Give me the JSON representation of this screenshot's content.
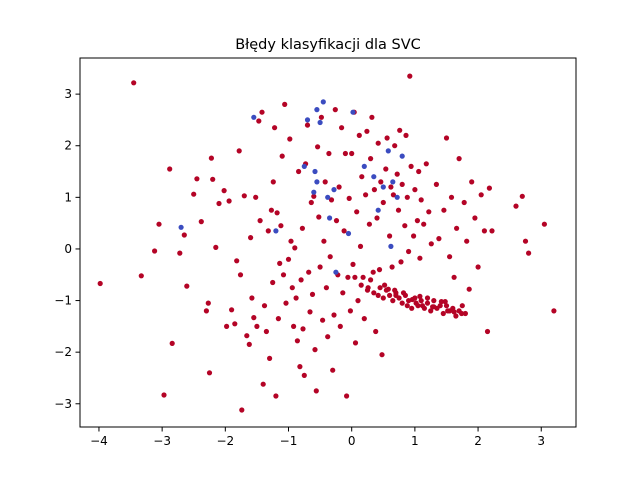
{
  "chart_data": {
    "type": "scatter",
    "title": "Błędy klasyfikacji dla SVC",
    "xlabel": "",
    "ylabel": "",
    "xlim": [
      -4.3,
      3.55
    ],
    "ylim": [
      -3.45,
      3.7
    ],
    "x_ticks": [
      -4,
      -3,
      -2,
      -1,
      0,
      1,
      2,
      3
    ],
    "y_ticks": [
      -3,
      -2,
      -1,
      0,
      1,
      2,
      3
    ],
    "grid": false,
    "legend": "none",
    "colors": {
      "correct": "#b40426",
      "misclassified": "#3b4cc0"
    },
    "series": [
      {
        "color_key": "correct",
        "points": [
          [
            -3.45,
            3.22
          ],
          [
            -3.98,
            -0.67
          ],
          [
            -3.33,
            -0.52
          ],
          [
            -3.12,
            -0.04
          ],
          [
            -3.05,
            0.48
          ],
          [
            -2.97,
            -2.83
          ],
          [
            -2.88,
            1.55
          ],
          [
            -2.84,
            -1.83
          ],
          [
            -2.72,
            -0.08
          ],
          [
            -2.65,
            0.27
          ],
          [
            -2.61,
            -0.72
          ],
          [
            -2.5,
            1.06
          ],
          [
            -2.45,
            1.36
          ],
          [
            -2.38,
            0.53
          ],
          [
            -2.3,
            -1.2
          ],
          [
            -2.27,
            -1.05
          ],
          [
            -2.25,
            -2.4
          ],
          [
            -2.22,
            1.76
          ],
          [
            -2.2,
            1.35
          ],
          [
            -2.15,
            0.03
          ],
          [
            -2.1,
            0.88
          ],
          [
            -2.02,
            1.13
          ],
          [
            -1.98,
            -1.5
          ],
          [
            -1.94,
            0.93
          ],
          [
            -1.9,
            -1.18
          ],
          [
            -1.85,
            -1.45
          ],
          [
            -1.82,
            -0.23
          ],
          [
            -1.78,
            1.9
          ],
          [
            -1.76,
            -0.5
          ],
          [
            -1.74,
            -3.12
          ],
          [
            -1.7,
            1.03
          ],
          [
            -1.66,
            -1.68
          ],
          [
            -1.62,
            -1.85
          ],
          [
            -1.6,
            0.22
          ],
          [
            -1.58,
            -0.95
          ],
          [
            -1.55,
            -1.33
          ],
          [
            -1.52,
            1.0
          ],
          [
            -1.5,
            -1.5
          ],
          [
            -1.47,
            2.48
          ],
          [
            -1.45,
            0.55
          ],
          [
            -1.42,
            2.65
          ],
          [
            -1.4,
            -2.62
          ],
          [
            -1.38,
            -1.1
          ],
          [
            -1.35,
            -1.6
          ],
          [
            -1.32,
            0.35
          ],
          [
            -1.3,
            -2.12
          ],
          [
            -1.27,
            0.75
          ],
          [
            -1.25,
            -0.65
          ],
          [
            -1.24,
            1.3
          ],
          [
            -1.22,
            2.35
          ],
          [
            -1.2,
            -2.85
          ],
          [
            -1.18,
            0.7
          ],
          [
            -1.16,
            -1.35
          ],
          [
            -1.14,
            -0.28
          ],
          [
            -1.12,
            0.45
          ],
          [
            -1.1,
            1.8
          ],
          [
            -1.08,
            -0.5
          ],
          [
            -1.06,
            2.8
          ],
          [
            -1.04,
            -1.05
          ],
          [
            -1.0,
            -0.2
          ],
          [
            -0.98,
            2.13
          ],
          [
            -0.96,
            0.15
          ],
          [
            -0.94,
            -0.75
          ],
          [
            -0.92,
            -1.5
          ],
          [
            -0.9,
            0.02
          ],
          [
            -0.88,
            -0.95
          ],
          [
            -0.86,
            -1.78
          ],
          [
            -0.84,
            1.5
          ],
          [
            -0.82,
            -2.28
          ],
          [
            -0.8,
            -0.6
          ],
          [
            -0.78,
            0.4
          ],
          [
            -0.77,
            -1.55
          ],
          [
            -0.75,
            -2.45
          ],
          [
            -0.73,
            1.65
          ],
          [
            -0.7,
            2.4
          ],
          [
            -0.68,
            -0.45
          ],
          [
            -0.66,
            -1.22
          ],
          [
            -0.64,
            0.9
          ],
          [
            -0.62,
            -0.88
          ],
          [
            -0.6,
            1.02
          ],
          [
            -0.58,
            -1.95
          ],
          [
            -0.56,
            -2.75
          ],
          [
            -0.54,
            1.98
          ],
          [
            -0.52,
            0.62
          ],
          [
            -0.5,
            -0.35
          ],
          [
            -0.48,
            2.55
          ],
          [
            -0.46,
            -1.38
          ],
          [
            -0.44,
            0.15
          ],
          [
            -0.42,
            1.3
          ],
          [
            -0.4,
            -0.75
          ],
          [
            -0.38,
            -1.7
          ],
          [
            -0.36,
            1.85
          ],
          [
            -0.34,
            -0.15
          ],
          [
            -0.32,
            0.95
          ],
          [
            -0.3,
            -2.35
          ],
          [
            -0.28,
            -1.28
          ],
          [
            -0.26,
            2.7
          ],
          [
            -0.24,
            0.55
          ],
          [
            -0.22,
            -0.5
          ],
          [
            -0.2,
            1.2
          ],
          [
            -0.18,
            -1.5
          ],
          [
            -0.16,
            2.35
          ],
          [
            -0.14,
            -0.85
          ],
          [
            -0.12,
            0.35
          ],
          [
            -0.1,
            1.85
          ],
          [
            -0.08,
            -2.85
          ],
          [
            -0.06,
            -0.55
          ],
          [
            -0.04,
            0.98
          ],
          [
            -0.02,
            -1.2
          ],
          [
            0.0,
            1.85
          ],
          [
            0.02,
            -0.3
          ],
          [
            0.04,
            2.65
          ],
          [
            0.06,
            -1.82
          ],
          [
            0.08,
            0.72
          ],
          [
            0.1,
            -1.0
          ],
          [
            0.12,
            2.2
          ],
          [
            0.14,
            0.05
          ],
          [
            0.16,
            1.4
          ],
          [
            0.18,
            -0.55
          ],
          [
            0.2,
            -1.35
          ],
          [
            0.22,
            1.05
          ],
          [
            0.24,
            2.28
          ],
          [
            0.26,
            -0.75
          ],
          [
            0.28,
            0.48
          ],
          [
            0.3,
            1.75
          ],
          [
            0.32,
            2.55
          ],
          [
            0.34,
            -0.45
          ],
          [
            0.36,
            1.15
          ],
          [
            0.38,
            -1.6
          ],
          [
            0.4,
            0.6
          ],
          [
            0.42,
            2.05
          ],
          [
            0.44,
            -0.4
          ],
          [
            0.46,
            1.3
          ],
          [
            0.48,
            -2.05
          ],
          [
            0.5,
            0.9
          ],
          [
            0.52,
            -0.7
          ],
          [
            0.54,
            1.55
          ],
          [
            0.56,
            2.15
          ],
          [
            0.58,
            -0.78
          ],
          [
            0.6,
            0.25
          ],
          [
            0.62,
            1.2
          ],
          [
            0.64,
            -0.35
          ],
          [
            0.66,
            1.05
          ],
          [
            0.68,
            2.0
          ],
          [
            0.7,
            -0.9
          ],
          [
            0.72,
            1.45
          ],
          [
            0.74,
            0.75
          ],
          [
            0.76,
            2.3
          ],
          [
            0.78,
            -0.25
          ],
          [
            0.8,
            1.25
          ],
          [
            0.82,
            -0.85
          ],
          [
            0.84,
            0.45
          ],
          [
            0.86,
            2.2
          ],
          [
            0.88,
            1.0
          ],
          [
            0.9,
            -0.05
          ],
          [
            0.92,
            3.35
          ],
          [
            0.94,
            1.6
          ],
          [
            0.96,
            -0.98
          ],
          [
            0.98,
            0.25
          ],
          [
            1.0,
            1.15
          ],
          [
            1.02,
            -1.05
          ],
          [
            1.04,
            0.55
          ],
          [
            1.06,
            1.5
          ],
          [
            1.08,
            -0.18
          ],
          [
            1.1,
            0.95
          ],
          [
            1.12,
            -1.1
          ],
          [
            1.14,
            0.48
          ],
          [
            1.18,
            1.65
          ],
          [
            1.2,
            -0.95
          ],
          [
            1.22,
            0.72
          ],
          [
            1.26,
            0.1
          ],
          [
            1.3,
            -1.12
          ],
          [
            1.34,
            1.25
          ],
          [
            1.38,
            0.2
          ],
          [
            1.42,
            -1.02
          ],
          [
            1.46,
            0.75
          ],
          [
            1.5,
            2.15
          ],
          [
            1.52,
            -1.2
          ],
          [
            1.55,
            -0.15
          ],
          [
            1.58,
            1.0
          ],
          [
            1.62,
            -0.55
          ],
          [
            1.66,
            0.4
          ],
          [
            1.7,
            1.75
          ],
          [
            1.74,
            -1.25
          ],
          [
            1.78,
            0.9
          ],
          [
            1.82,
            0.15
          ],
          [
            1.86,
            -0.78
          ],
          [
            1.9,
            1.3
          ],
          [
            1.95,
            0.6
          ],
          [
            2.0,
            -0.35
          ],
          [
            2.05,
            1.05
          ],
          [
            2.1,
            0.35
          ],
          [
            2.15,
            -1.6
          ],
          [
            2.18,
            1.18
          ],
          [
            2.22,
            0.35
          ],
          [
            2.6,
            0.83
          ],
          [
            2.7,
            1.02
          ],
          [
            2.75,
            0.15
          ],
          [
            2.8,
            -0.08
          ],
          [
            3.05,
            0.48
          ],
          [
            3.2,
            -1.2
          ],
          [
            0.05,
            -0.55
          ],
          [
            0.15,
            -0.7
          ],
          [
            0.25,
            -0.8
          ],
          [
            0.35,
            -0.85
          ],
          [
            0.42,
            -0.9
          ],
          [
            0.5,
            -0.95
          ],
          [
            0.55,
            -0.8
          ],
          [
            0.6,
            -0.9
          ],
          [
            0.65,
            -1.0
          ],
          [
            0.7,
            -0.85
          ],
          [
            0.75,
            -0.95
          ],
          [
            0.8,
            -1.05
          ],
          [
            0.85,
            -0.9
          ],
          [
            0.9,
            -1.0
          ],
          [
            0.95,
            -1.15
          ],
          [
            1.0,
            -0.95
          ],
          [
            1.05,
            -1.1
          ],
          [
            1.1,
            -1.0
          ],
          [
            1.15,
            -1.15
          ],
          [
            1.2,
            -1.05
          ],
          [
            1.25,
            -1.2
          ],
          [
            1.3,
            -1.0
          ],
          [
            1.35,
            -1.15
          ],
          [
            1.4,
            -1.1
          ],
          [
            1.45,
            -1.25
          ],
          [
            1.5,
            -1.1
          ],
          [
            1.55,
            -1.2
          ],
          [
            1.6,
            -1.15
          ],
          [
            1.65,
            -1.3
          ],
          [
            1.7,
            -1.2
          ],
          [
            1.75,
            -1.1
          ],
          [
            1.8,
            -1.25
          ],
          [
            0.3,
            -0.6
          ],
          [
            0.45,
            -0.75
          ],
          [
            0.68,
            -0.8
          ],
          [
            0.88,
            -1.1
          ],
          [
            1.08,
            -0.92
          ],
          [
            1.28,
            -1.12
          ],
          [
            1.48,
            -1.02
          ],
          [
            1.62,
            -1.22
          ]
        ]
      },
      {
        "color_key": "misclassified",
        "points": [
          [
            -1.55,
            2.55
          ],
          [
            -2.7,
            0.42
          ],
          [
            -1.2,
            0.35
          ],
          [
            -0.7,
            2.5
          ],
          [
            -0.55,
            2.7
          ],
          [
            -0.45,
            2.85
          ],
          [
            -0.5,
            2.45
          ],
          [
            -0.75,
            1.6
          ],
          [
            -0.58,
            1.5
          ],
          [
            -0.6,
            1.1
          ],
          [
            -0.55,
            1.3
          ],
          [
            -0.38,
            1.0
          ],
          [
            -0.35,
            0.6
          ],
          [
            -0.25,
            -0.45
          ],
          [
            -0.28,
            1.15
          ],
          [
            -0.05,
            0.3
          ],
          [
            0.02,
            2.65
          ],
          [
            0.2,
            1.6
          ],
          [
            0.35,
            1.4
          ],
          [
            0.42,
            0.75
          ],
          [
            0.5,
            1.2
          ],
          [
            0.58,
            1.9
          ],
          [
            0.65,
            1.3
          ],
          [
            0.8,
            1.8
          ],
          [
            0.72,
            1.0
          ],
          [
            0.62,
            0.05
          ]
        ]
      }
    ]
  }
}
